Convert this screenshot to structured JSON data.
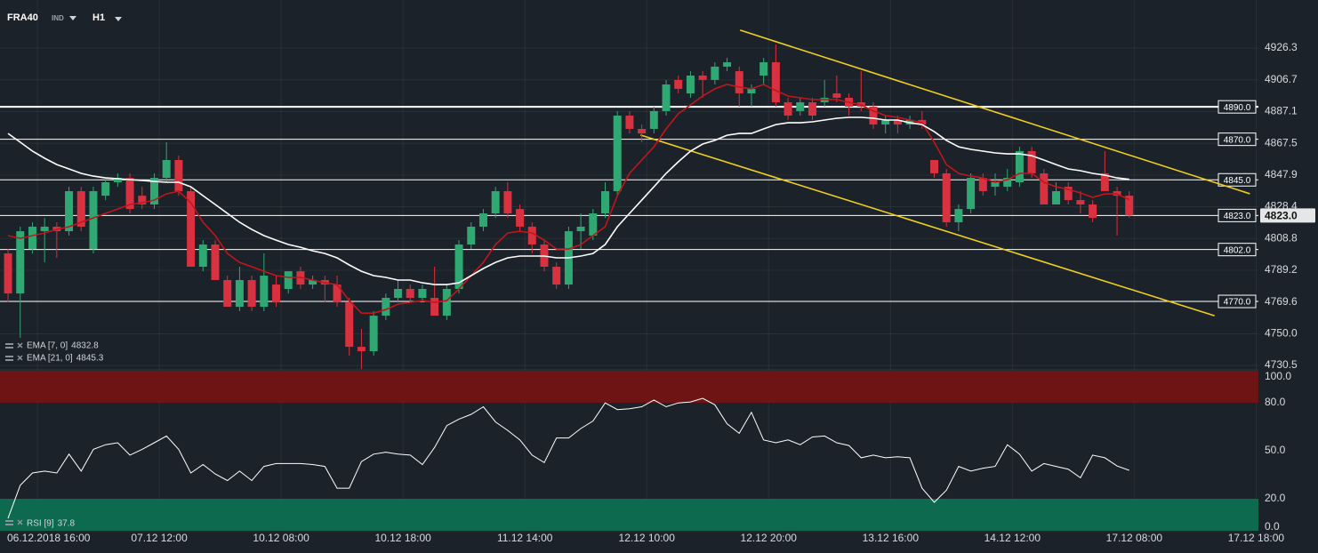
{
  "header": {
    "symbol": "FRA40",
    "market": "IND",
    "timeframe": "H1"
  },
  "chart_data": [
    {
      "type": "candlestick",
      "ylim": [
        4727.8,
        4955.9
      ],
      "yticks": [
        4926.3,
        4906.7,
        4887.1,
        4867.5,
        4847.9,
        4828.4,
        4808.8,
        4789.2,
        4769.6,
        {
          "value": 4750,
          "label": "4750.0"
        },
        4730.5
      ],
      "xlim": [
        -0.66,
        102.6
      ],
      "xticks": [
        {
          "value": 2.41,
          "label": "06.12.2018 16:00"
        },
        {
          "value": 12.41,
          "label": "07.12 12:00"
        },
        {
          "value": 22.41,
          "label": "10.12 08:00"
        },
        {
          "value": 32.41,
          "label": "10.12 18:00"
        },
        {
          "value": 42.41,
          "label": "11.12 14:00"
        },
        {
          "value": 52.41,
          "label": "12.12 10:00"
        },
        {
          "value": 62.41,
          "label": "12.12 20:00"
        },
        {
          "value": 72.41,
          "label": "13.12 16:00"
        },
        {
          "value": 82.41,
          "label": "14.12 12:00"
        },
        {
          "value": 92.41,
          "label": "17.12 08:00"
        },
        {
          "value": 102.41,
          "label": "17.12 18:00"
        }
      ],
      "grid": true,
      "up_color": "#2fa873",
      "down_color": "#d8313f",
      "open": [
        4799.6,
        4774.9,
        4802.3,
        4813.3,
        4816.1,
        4813.3,
        4838.0,
        4802.3,
        4835.2,
        4843.5,
        4846.2,
        4835.2,
        4829.8,
        4846.2,
        4857.2,
        4838.0,
        4791.4,
        4805.1,
        4783.2,
        4766.7,
        4783.2,
        4766.7,
        4780.4,
        4777.7,
        4788.6,
        4780.4,
        4783.2,
        4780.4,
        4769.4,
        4742.0,
        4739.3,
        4761.2,
        4772.2,
        4777.7,
        4772.2,
        4772.2,
        4761.2,
        4777.7,
        4805.1,
        4816.1,
        4824.3,
        4838.0,
        4827.0,
        4816.1,
        4805.1,
        4791.4,
        4780.4,
        4813.3,
        4810.6,
        4824.3,
        4838.0,
        4884.6,
        4876.4,
        4876.4,
        4887.4,
        4906.6,
        4898.3,
        4909.3,
        4906.6,
        4914.8,
        4912.0,
        4898.3,
        4909.3,
        4917.5,
        4892.8,
        4887.4,
        4892.8,
        4892.8,
        4898.3,
        4895.6,
        4892.8,
        4890.1,
        4879.1,
        4881.9,
        4879.1,
        4881.9,
        4857.2,
        4849.0,
        4818.8,
        4827.0,
        4846.2,
        4840.7,
        4840.7,
        4843.5,
        4862.7,
        4849.0,
        4829.8,
        4840.7,
        4832.5,
        4829.8,
        4849.0,
        4838.0,
        4835.2
      ],
      "high": [
        4802.3,
        4816.1,
        4818.8,
        4821.5,
        4818.8,
        4840.7,
        4840.7,
        4840.7,
        4846.2,
        4849.0,
        4849.0,
        4840.7,
        4849.0,
        4868.2,
        4859.9,
        4840.7,
        4807.8,
        4807.8,
        4785.9,
        4791.4,
        4785.9,
        4799.6,
        4785.9,
        4788.6,
        4791.4,
        4785.9,
        4785.9,
        4785.9,
        4772.2,
        4753.0,
        4764.0,
        4774.9,
        4783.2,
        4780.4,
        4780.4,
        4791.4,
        4780.4,
        4807.8,
        4818.8,
        4827.0,
        4840.7,
        4843.5,
        4829.8,
        4818.8,
        4807.8,
        4794.1,
        4816.1,
        4824.3,
        4827.0,
        4843.5,
        4887.4,
        4887.4,
        4879.1,
        4890.1,
        4906.6,
        4909.3,
        4912.0,
        4912.0,
        4917.5,
        4920.2,
        4914.8,
        4903.8,
        4920.2,
        4928.5,
        4895.6,
        4895.6,
        4895.6,
        4906.6,
        4909.3,
        4898.3,
        4912.0,
        4892.8,
        4884.6,
        4884.6,
        4884.6,
        4887.4,
        4857.2,
        4851.7,
        4829.8,
        4849.0,
        4849.0,
        4849.0,
        4851.7,
        4865.4,
        4865.4,
        4851.7,
        4843.5,
        4843.5,
        4838.0,
        4832.5,
        4862.7,
        4840.7,
        4838.0
      ],
      "low": [
        4769.4,
        4747.5,
        4799.6,
        4794.1,
        4796.9,
        4810.6,
        4813.3,
        4799.6,
        4832.5,
        4840.7,
        4824.3,
        4827.0,
        4827.0,
        4843.5,
        4835.2,
        4791.4,
        4788.6,
        4783.2,
        4766.7,
        4764.0,
        4764.0,
        4764.0,
        4766.7,
        4774.9,
        4777.7,
        4777.7,
        4769.4,
        4766.7,
        4736.5,
        4728.3,
        4736.5,
        4758.5,
        4769.4,
        4769.4,
        4769.4,
        4761.2,
        4758.5,
        4774.9,
        4802.3,
        4813.3,
        4821.5,
        4821.5,
        4813.3,
        4799.6,
        4788.6,
        4777.7,
        4777.7,
        4802.3,
        4807.8,
        4821.5,
        4835.2,
        4873.6,
        4868.2,
        4873.6,
        4884.6,
        4898.3,
        4895.6,
        4895.6,
        4903.8,
        4912.0,
        4890.1,
        4890.1,
        4903.8,
        4890.1,
        4881.9,
        4884.6,
        4881.9,
        4890.1,
        4892.8,
        4884.6,
        4887.4,
        4876.4,
        4873.6,
        4873.6,
        4876.4,
        4876.4,
        4846.2,
        4816.1,
        4813.3,
        4824.3,
        4835.2,
        4835.2,
        4838.0,
        4840.7,
        4846.2,
        4829.8,
        4829.8,
        4829.8,
        4824.3,
        4818.8,
        4838.0,
        4810.6,
        4821.5
      ],
      "close": [
        4774.9,
        4813.3,
        4816.1,
        4816.1,
        4813.3,
        4838.0,
        4816.1,
        4838.0,
        4843.5,
        4846.2,
        4827.0,
        4829.8,
        4846.2,
        4857.2,
        4838.0,
        4791.4,
        4805.1,
        4783.2,
        4766.7,
        4783.2,
        4766.7,
        4785.9,
        4769.4,
        4788.6,
        4780.4,
        4783.2,
        4780.4,
        4769.4,
        4742.0,
        4739.3,
        4761.2,
        4772.2,
        4777.7,
        4772.2,
        4777.7,
        4761.2,
        4777.7,
        4805.1,
        4816.1,
        4824.3,
        4838.0,
        4824.3,
        4816.1,
        4805.1,
        4791.4,
        4780.4,
        4813.3,
        4816.1,
        4824.3,
        4838.0,
        4884.6,
        4876.4,
        4873.6,
        4887.4,
        4903.8,
        4901.1,
        4909.3,
        4906.6,
        4914.8,
        4917.5,
        4898.3,
        4901.1,
        4917.5,
        4892.8,
        4884.6,
        4892.8,
        4884.6,
        4895.6,
        4895.6,
        4890.1,
        4890.1,
        4879.1,
        4881.9,
        4879.1,
        4881.9,
        4879.1,
        4849.0,
        4818.8,
        4827.0,
        4846.2,
        4838.0,
        4843.5,
        4846.2,
        4862.7,
        4849.0,
        4829.8,
        4838.0,
        4832.5,
        4829.8,
        4821.5,
        4838.0,
        4835.2,
        4823.0
      ],
      "series": [
        {
          "name": "EMA [7, 0]",
          "color": "#c2161b",
          "values": [
            4810.6,
            4808.9,
            4810.6,
            4812.2,
            4814.4,
            4816.1,
            4818.8,
            4821.5,
            4824.3,
            4827.0,
            4829.8,
            4830.9,
            4832.5,
            4836.3,
            4838.0,
            4830.9,
            4818.8,
            4810.6,
            4799.6,
            4794.1,
            4791.4,
            4788.6,
            4785.9,
            4784.8,
            4784.8,
            4783.2,
            4781.5,
            4780.4,
            4770.5,
            4762.8,
            4762.8,
            4765.0,
            4768.3,
            4769.4,
            4770.5,
            4769.4,
            4770.5,
            4777.7,
            4785.9,
            4794.1,
            4805.1,
            4812.2,
            4813.3,
            4812.2,
            4807.8,
            4802.3,
            4802.3,
            4805.1,
            4810.6,
            4816.1,
            4835.2,
            4849.0,
            4857.2,
            4865.4,
            4876.4,
            4885.7,
            4891.2,
            4896.7,
            4901.1,
            4903.8,
            4902.2,
            4901.1,
            4903.8,
            4900.0,
            4896.7,
            4895.6,
            4894.5,
            4894.5,
            4894.5,
            4892.8,
            4891.2,
            4887.4,
            4884.6,
            4883.5,
            4881.9,
            4880.2,
            4868.2,
            4854.4,
            4849.0,
            4847.3,
            4846.2,
            4843.5,
            4845.1,
            4849.0,
            4849.0,
            4843.5,
            4840.7,
            4839.1,
            4836.9,
            4834.2,
            4836.3,
            4836.3,
            4832.8
          ]
        },
        {
          "name": "EMA [21, 0]",
          "color": "#ffffff",
          "values": [
            4873.6,
            4868.2,
            4862.7,
            4858.3,
            4854.4,
            4851.7,
            4849.0,
            4847.3,
            4846.2,
            4845.7,
            4845.1,
            4844.6,
            4844.0,
            4843.5,
            4843.5,
            4840.7,
            4835.2,
            4829.8,
            4824.3,
            4818.8,
            4814.4,
            4810.6,
            4807.8,
            4805.1,
            4803.4,
            4801.2,
            4799.6,
            4796.9,
            4792.5,
            4788.6,
            4785.9,
            4784.8,
            4783.2,
            4783.2,
            4781.5,
            4780.4,
            4780.4,
            4781.5,
            4785.9,
            4790.3,
            4794.1,
            4796.9,
            4798.0,
            4798.0,
            4798.0,
            4796.9,
            4796.9,
            4798.0,
            4799.6,
            4805.1,
            4816.1,
            4824.3,
            4832.5,
            4840.7,
            4849.0,
            4856.1,
            4862.7,
            4867.1,
            4869.3,
            4872.5,
            4873.6,
            4873.6,
            4876.4,
            4879.1,
            4880.2,
            4880.2,
            4880.8,
            4881.9,
            4883.0,
            4883.5,
            4883.5,
            4883.0,
            4881.9,
            4881.9,
            4880.2,
            4879.1,
            4874.7,
            4869.3,
            4865.4,
            4863.8,
            4862.7,
            4861.6,
            4861.0,
            4861.0,
            4859.9,
            4857.2,
            4854.4,
            4851.7,
            4850.6,
            4849.0,
            4847.9,
            4846.2,
            4845.3
          ]
        }
      ],
      "levels": [
        {
          "value": 4890,
          "label": "4890.0"
        },
        {
          "value": 4870,
          "label": "4870.0"
        },
        {
          "value": 4845,
          "label": "4845.0"
        },
        {
          "value": 4823,
          "label": "4823.0"
        },
        {
          "value": 4802,
          "label": "4802.0"
        },
        {
          "value": 4770,
          "label": "4770.0"
        }
      ],
      "last_price": {
        "value": 4823,
        "label": "4823.0"
      },
      "trendlines": [
        {
          "color": "#f0cf1e",
          "x": [
            60.07,
            101.9
          ],
          "y": [
            4937.3,
            4836.4
          ]
        },
        {
          "color": "#f0cf1e",
          "x": [
            51.9,
            99.0
          ],
          "y": [
            4872.6,
            4761.2
          ]
        }
      ]
    },
    {
      "type": "line",
      "name": "RSI [9]",
      "color": "#ffffff",
      "ylim": [
        0,
        100
      ],
      "yticks": [
        {
          "value": 100,
          "label": "100.0"
        },
        {
          "value": 80,
          "label": "80.0"
        },
        {
          "value": 50,
          "label": "50.0"
        },
        {
          "value": 20,
          "label": "20.0"
        },
        {
          "value": 0,
          "label": "0.0"
        }
      ],
      "overbought": 80,
      "oversold": 20,
      "overbought_color": "#6e1414",
      "oversold_color": "#0e6a4f",
      "values": [
        7.7,
        28.4,
        36.1,
        37.3,
        36.1,
        47.9,
        37.3,
        50.9,
        53.8,
        55.0,
        47.3,
        50.9,
        55.0,
        59.2,
        50.9,
        36.1,
        41.4,
        35.5,
        31.4,
        37.3,
        31.4,
        40.2,
        42.0,
        42.0,
        42.0,
        41.4,
        40.2,
        26.6,
        26.6,
        43.2,
        47.9,
        49.1,
        47.9,
        47.3,
        41.4,
        52.1,
        65.7,
        69.8,
        72.8,
        77.5,
        68.0,
        62.7,
        56.8,
        47.3,
        42.6,
        58.0,
        58.0,
        63.9,
        68.6,
        79.9,
        75.7,
        76.3,
        77.5,
        81.7,
        77.5,
        79.9,
        80.5,
        82.8,
        78.7,
        66.9,
        60.9,
        74.0,
        56.8,
        55.0,
        56.8,
        53.8,
        58.6,
        59.2,
        55.0,
        53.3,
        45.6,
        47.3,
        45.6,
        46.2,
        45.6,
        26.6,
        17.8,
        25.4,
        40.2,
        37.3,
        39.1,
        40.2,
        53.8,
        47.9,
        37.3,
        42.0,
        40.2,
        38.5,
        33.1,
        47.3,
        45.6,
        40.5,
        37.8
      ]
    }
  ]
}
